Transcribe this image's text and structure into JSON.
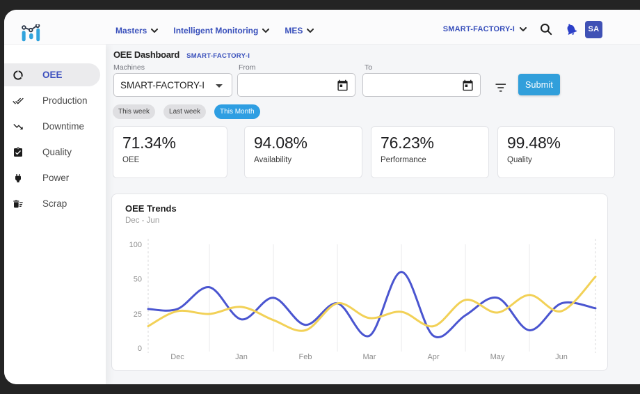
{
  "header": {
    "nav": [
      {
        "label": "Masters"
      },
      {
        "label": "Intelligent Monitoring"
      },
      {
        "label": "MES"
      }
    ],
    "factory_selector": "SMART-FACTORY-I",
    "avatar_initials": "SA"
  },
  "sidebar": {
    "items": [
      {
        "label": "OEE",
        "icon": "data-usage-icon",
        "active": true
      },
      {
        "label": "Production",
        "icon": "done-all-icon",
        "active": false
      },
      {
        "label": "Downtime",
        "icon": "trending-down-icon",
        "active": false
      },
      {
        "label": "Quality",
        "icon": "assignment-turned-in-icon",
        "active": false
      },
      {
        "label": "Power",
        "icon": "power-plug-icon",
        "active": false
      },
      {
        "label": "Scrap",
        "icon": "delete-sweep-icon",
        "active": false
      }
    ]
  },
  "page": {
    "title": "OEE Dashboard",
    "tag": "SMART-FACTORY-I"
  },
  "filters": {
    "machines_label": "Machines",
    "machines_value": "SMART-FACTORY-I",
    "from_label": "From",
    "from_value": "",
    "from_placeholder": "",
    "to_label": "To",
    "to_value": "",
    "to_placeholder": "",
    "submit_label": "Submit",
    "chips": [
      {
        "label": "This week",
        "active": false
      },
      {
        "label": "Last week",
        "active": false
      },
      {
        "label": "This Month",
        "active": true
      }
    ]
  },
  "stats": [
    {
      "value": "71.34%",
      "label": "OEE"
    },
    {
      "value": "94.08%",
      "label": "Availability"
    },
    {
      "value": "76.23%",
      "label": "Performance"
    },
    {
      "value": "99.48%",
      "label": "Quality"
    }
  ],
  "chart_data": {
    "type": "line",
    "title": "OEE Trends",
    "subtitle": "Dec - Jun",
    "x_categories": [
      "Dec",
      "Jan",
      "Feb",
      "Mar",
      "Apr",
      "May",
      "Jun"
    ],
    "y_ticks": [
      0,
      25,
      50,
      100
    ],
    "grid": "vertical-only",
    "legend": "none",
    "x_months": [
      -0.457,
      0,
      0.5,
      1,
      1.5,
      2,
      2.5,
      3,
      3.5,
      4,
      4.5,
      5,
      5.5,
      6,
      6.533
    ],
    "series": [
      {
        "name": "blue",
        "color": "#4a55d0",
        "values": [
          28.5,
          28.5,
          44,
          21,
          36.5,
          17,
          32.5,
          9,
          60,
          9,
          24,
          36.5,
          13,
          32.5,
          29
        ]
      },
      {
        "name": "yellow",
        "color": "#f2d157",
        "values": [
          16,
          27,
          25,
          30,
          20.5,
          13,
          32.5,
          22,
          26.5,
          16,
          35,
          26,
          38.5,
          27,
          53
        ]
      }
    ]
  }
}
